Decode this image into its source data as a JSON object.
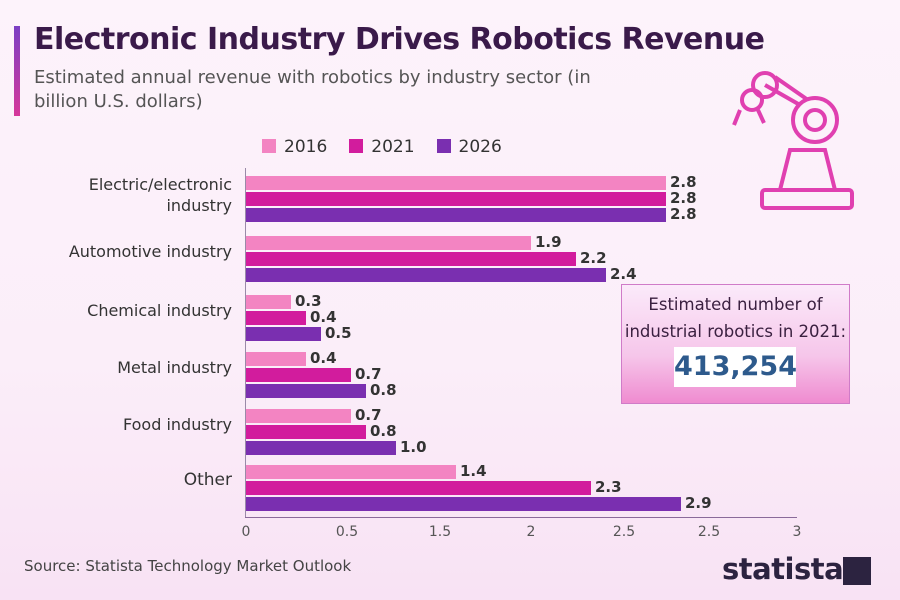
{
  "title": "Electronic Industry Drives Robotics Revenue",
  "subtitle": "Estimated annual revenue with robotics by industry sector (in billion U.S. dollars)",
  "callout": {
    "label": "Estimated number of industrial robotics in 2021:",
    "value": "413,254"
  },
  "source": "Source: Statista Technology Market Outlook",
  "logo": "statista",
  "colors": {
    "2016": "#f384c2",
    "2021": "#d21c9d",
    "2026": "#7a2fb0"
  },
  "chart_data": {
    "type": "bar",
    "orientation": "horizontal",
    "title": "Electronic Industry Drives Robotics Revenue",
    "categories": [
      "Electric/electronic industry",
      "Automotive industry",
      "Chemical industry",
      "Metal industry",
      "Food industry",
      "Other"
    ],
    "series": [
      {
        "name": "2016",
        "values": [
          2.8,
          1.9,
          0.3,
          0.4,
          0.7,
          1.4
        ]
      },
      {
        "name": "2021",
        "values": [
          2.8,
          2.2,
          0.4,
          0.7,
          0.8,
          2.3
        ]
      },
      {
        "name": "2026",
        "values": [
          2.8,
          2.4,
          0.5,
          0.8,
          1.0,
          2.9
        ]
      }
    ],
    "value_labels": [
      [
        "2.8",
        "1.9",
        "0.3",
        "0.4",
        "0.7",
        "1.4"
      ],
      [
        "2.8",
        "2.2",
        "0.4",
        "0.7",
        "0.8",
        "2.3"
      ],
      [
        "2.8",
        "2.4",
        "0.5",
        "0.8",
        "1.0",
        "2.9"
      ]
    ],
    "xticks": [
      "0",
      "0.5",
      "1.5",
      "2",
      "2.5",
      "2.5",
      "3"
    ],
    "legend": "top",
    "grid": false
  }
}
